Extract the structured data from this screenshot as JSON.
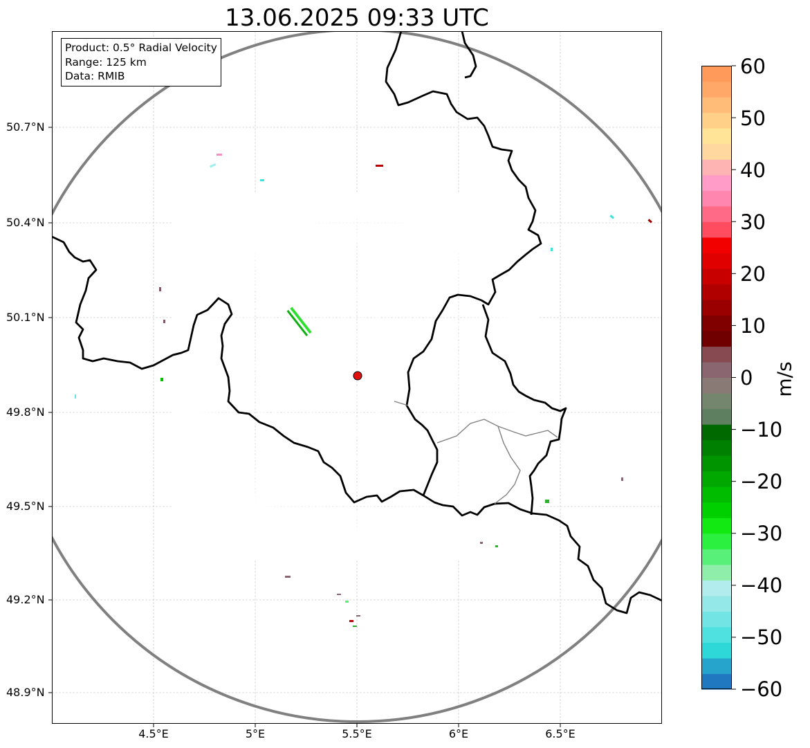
{
  "title": "13.06.2025 09:33 UTC",
  "info_box": {
    "product": "Product: 0.5° Radial Velocity",
    "range": "Range: 125 km",
    "data": "Data: RMIB"
  },
  "map": {
    "lat_range": [
      48.8,
      51.0
    ],
    "lon_range": [
      4.0,
      7.0
    ],
    "lat_ticks": [
      "50.7°N",
      "50.4°N",
      "50.1°N",
      "49.8°N",
      "49.5°N",
      "49.2°N",
      "48.9°N"
    ],
    "lon_ticks": [
      "4.5°E",
      "5°E",
      "5.5°E",
      "6°E",
      "6.5°E"
    ],
    "radar_site": {
      "lon": 5.505,
      "lat": 49.915
    },
    "range_km": 125
  },
  "colorbar": {
    "label": "m/s",
    "min": -60,
    "max": 60,
    "ticks": [
      "60",
      "50",
      "40",
      "30",
      "20",
      "10",
      "0",
      "−10",
      "−20",
      "−30",
      "−40",
      "−50",
      "−60"
    ],
    "colors": [
      "#1f78c0",
      "#26a4cc",
      "#2ed8d8",
      "#4fe0e0",
      "#72e4e4",
      "#94e8e8",
      "#b2ecec",
      "#8eeeaa",
      "#58f078",
      "#2cf040",
      "#12e812",
      "#00d000",
      "#00bc00",
      "#00a800",
      "#009400",
      "#008000",
      "#006a00",
      "#5e8060",
      "#74866e",
      "#8a7a76",
      "#8a6670",
      "#874a50",
      "#700000",
      "#800000",
      "#9a0000",
      "#b00000",
      "#c80000",
      "#e00000",
      "#f20000",
      "#ff4c5e",
      "#ff6a86",
      "#ff86ae",
      "#ff9cc8",
      "#ffb4b4",
      "#ffd8a0",
      "#ffe498",
      "#ffd088",
      "#ffbc78",
      "#ffa868",
      "#ff9a5a"
    ]
  }
}
